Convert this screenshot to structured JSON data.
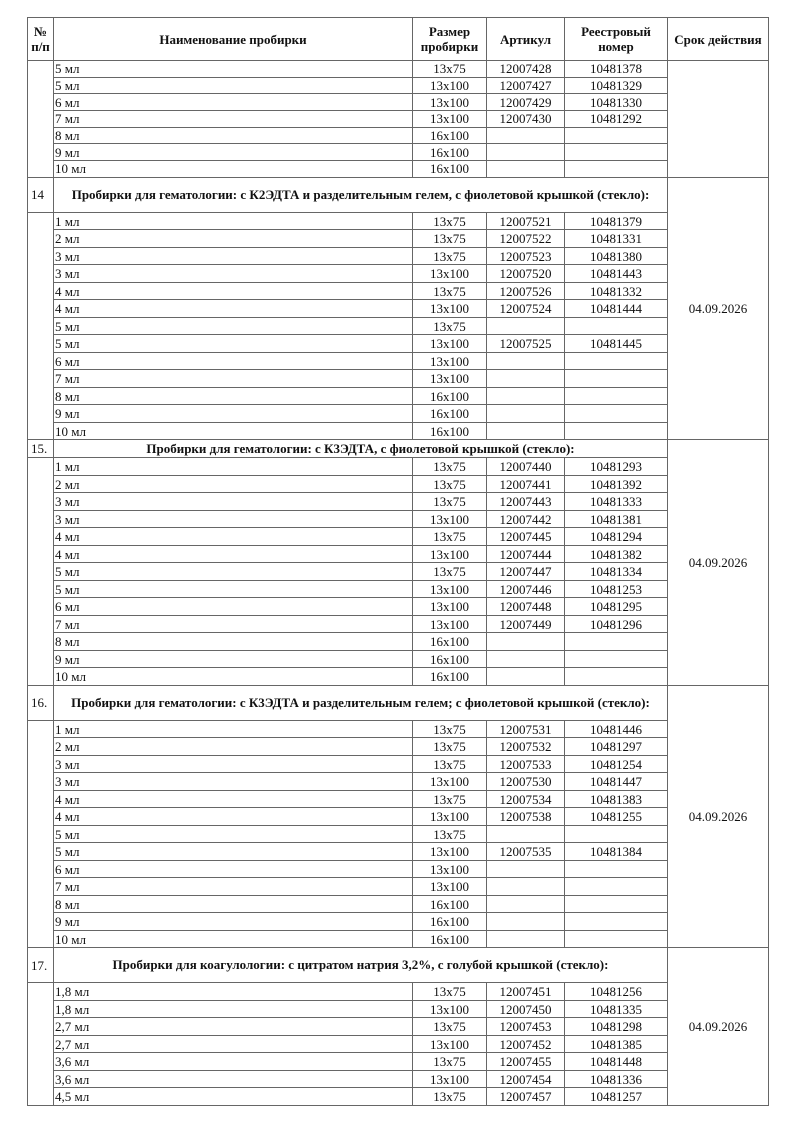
{
  "header": {
    "num": "№ п/п",
    "name": "Наименование пробирки",
    "size": "Размер пробирки",
    "article": "Артикул",
    "registry": "Реестровый номер",
    "expiry": "Срок действия"
  },
  "continuation": {
    "expiry": "",
    "rows": [
      {
        "name": "5 мл",
        "size": "13x75",
        "article": "12007428",
        "registry": "10481378"
      },
      {
        "name": "5 мл",
        "size": "13x100",
        "article": "12007427",
        "registry": "10481329"
      },
      {
        "name": "6 мл",
        "size": "13x100",
        "article": "12007429",
        "registry": "10481330"
      },
      {
        "name": "7 мл",
        "size": "13x100",
        "article": "12007430",
        "registry": "10481292"
      },
      {
        "name": "8 мл",
        "size": "16x100",
        "article": "",
        "registry": ""
      },
      {
        "name": "9 мл",
        "size": "16x100",
        "article": "",
        "registry": ""
      },
      {
        "name": "10 мл",
        "size": "16x100",
        "article": "",
        "registry": ""
      }
    ]
  },
  "sections": [
    {
      "num": "14",
      "title": "Пробирки для гематологии: с К2ЭДТА и разделительным гелем, с фиолетовой крышкой (стекло):",
      "expiry": "04.09.2026",
      "rows": [
        {
          "name": "1 мл",
          "size": "13x75",
          "article": "12007521",
          "registry": "10481379"
        },
        {
          "name": "2 мл",
          "size": "13x75",
          "article": "12007522",
          "registry": "10481331"
        },
        {
          "name": "3 мл",
          "size": "13x75",
          "article": "12007523",
          "registry": "10481380"
        },
        {
          "name": "3 мл",
          "size": "13x100",
          "article": "12007520",
          "registry": "10481443"
        },
        {
          "name": "4 мл",
          "size": "13x75",
          "article": "12007526",
          "registry": "10481332"
        },
        {
          "name": "4 мл",
          "size": "13x100",
          "article": "12007524",
          "registry": "10481444"
        },
        {
          "name": "5 мл",
          "size": "13x75",
          "article": "",
          "registry": ""
        },
        {
          "name": "5 мл",
          "size": "13x100",
          "article": "12007525",
          "registry": "10481445"
        },
        {
          "name": "6 мл",
          "size": "13x100",
          "article": "",
          "registry": ""
        },
        {
          "name": "7 мл",
          "size": "13x100",
          "article": "",
          "registry": ""
        },
        {
          "name": "8 мл",
          "size": "16x100",
          "article": "",
          "registry": ""
        },
        {
          "name": "9 мл",
          "size": "16x100",
          "article": "",
          "registry": ""
        },
        {
          "name": "10 мл",
          "size": "16x100",
          "article": "",
          "registry": ""
        }
      ]
    },
    {
      "num": "15.",
      "title": "Пробирки для гематологии: с К3ЭДТА, с фиолетовой крышкой (стекло):",
      "expiry": "04.09.2026",
      "rows": [
        {
          "name": "1 мл",
          "size": "13x75",
          "article": "12007440",
          "registry": "10481293"
        },
        {
          "name": "2 мл",
          "size": "13x75",
          "article": "12007441",
          "registry": "10481392"
        },
        {
          "name": "3 мл",
          "size": "13x75",
          "article": "12007443",
          "registry": "10481333"
        },
        {
          "name": "3 мл",
          "size": "13x100",
          "article": "12007442",
          "registry": "10481381"
        },
        {
          "name": "4 мл",
          "size": "13x75",
          "article": "12007445",
          "registry": "10481294"
        },
        {
          "name": "4 мл",
          "size": "13x100",
          "article": "12007444",
          "registry": "10481382"
        },
        {
          "name": "5 мл",
          "size": "13x75",
          "article": "12007447",
          "registry": "10481334"
        },
        {
          "name": "5 мл",
          "size": "13x100",
          "article": "12007446",
          "registry": "10481253"
        },
        {
          "name": "6 мл",
          "size": "13x100",
          "article": "12007448",
          "registry": "10481295"
        },
        {
          "name": "7 мл",
          "size": "13x100",
          "article": "12007449",
          "registry": "10481296"
        },
        {
          "name": "8 мл",
          "size": "16x100",
          "article": "",
          "registry": ""
        },
        {
          "name": "9 мл",
          "size": "16x100",
          "article": "",
          "registry": ""
        },
        {
          "name": "10 мл",
          "size": "16x100",
          "article": "",
          "registry": ""
        }
      ]
    },
    {
      "num": "16.",
      "title": "Пробирки для гематологии: с К3ЭДТА и разделительным гелем; с фиолетовой крышкой (стекло):",
      "expiry": "04.09.2026",
      "rows": [
        {
          "name": "1 мл",
          "size": "13x75",
          "article": "12007531",
          "registry": "10481446"
        },
        {
          "name": "2 мл",
          "size": "13x75",
          "article": "12007532",
          "registry": "10481297"
        },
        {
          "name": "3 мл",
          "size": "13x75",
          "article": "12007533",
          "registry": "10481254"
        },
        {
          "name": "3 мл",
          "size": "13x100",
          "article": "12007530",
          "registry": "10481447"
        },
        {
          "name": "4 мл",
          "size": "13x75",
          "article": "12007534",
          "registry": "10481383"
        },
        {
          "name": "4 мл",
          "size": "13x100",
          "article": "12007538",
          "registry": "10481255"
        },
        {
          "name": "5 мл",
          "size": "13x75",
          "article": "",
          "registry": ""
        },
        {
          "name": "5 мл",
          "size": "13x100",
          "article": "12007535",
          "registry": "10481384"
        },
        {
          "name": "6 мл",
          "size": "13x100",
          "article": "",
          "registry": ""
        },
        {
          "name": "7 мл",
          "size": "13x100",
          "article": "",
          "registry": ""
        },
        {
          "name": "8 мл",
          "size": "16x100",
          "article": "",
          "registry": ""
        },
        {
          "name": "9 мл",
          "size": "16x100",
          "article": "",
          "registry": ""
        },
        {
          "name": "10 мл",
          "size": "16x100",
          "article": "",
          "registry": ""
        }
      ]
    },
    {
      "num": "17.",
      "title": "Пробирки для коагулологии: с цитратом натрия 3,2%, с голубой крышкой (стекло):",
      "expiry": "04.09.2026",
      "rows": [
        {
          "name": "1,8 мл",
          "size": "13x75",
          "article": "12007451",
          "registry": "10481256"
        },
        {
          "name": "1,8 мл",
          "size": "13x100",
          "article": "12007450",
          "registry": "10481335"
        },
        {
          "name": "2,7 мл",
          "size": "13x75",
          "article": "12007453",
          "registry": "10481298"
        },
        {
          "name": "2,7 мл",
          "size": "13x100",
          "article": "12007452",
          "registry": "10481385"
        },
        {
          "name": "3,6 мл",
          "size": "13x75",
          "article": "12007455",
          "registry": "10481448"
        },
        {
          "name": "3,6 мл",
          "size": "13x100",
          "article": "12007454",
          "registry": "10481336"
        },
        {
          "name": "4,5 мл",
          "size": "13x75",
          "article": "12007457",
          "registry": "10481257"
        }
      ]
    }
  ]
}
